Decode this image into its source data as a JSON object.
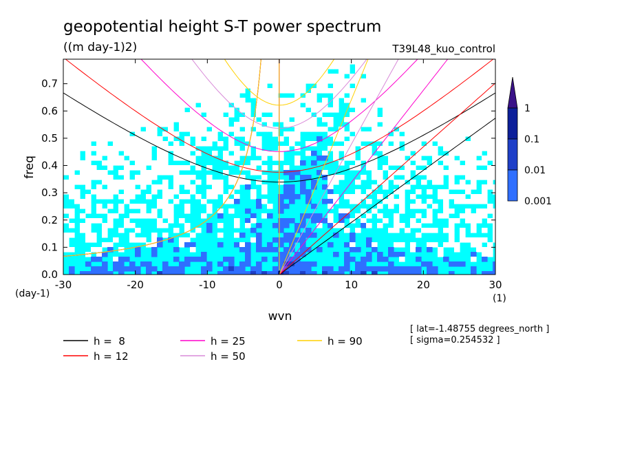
{
  "chart_data": {
    "type": "heatmap",
    "title": "geopotential height S-T power spectrum",
    "units_label": "((m day-1)2)",
    "run_label": "T39L48_kuo_control",
    "xlabel": "wvn",
    "ylabel": "freq",
    "x_unit": "(1)",
    "y_unit": "(day-1)",
    "xlim": [
      -30,
      30
    ],
    "ylim": [
      0,
      0.79
    ],
    "xticks": [
      -30,
      -20,
      -10,
      0,
      10,
      20,
      30
    ],
    "yticks": [
      0.0,
      0.1,
      0.2,
      0.3,
      0.4,
      0.5,
      0.6,
      0.7
    ],
    "xtick_labels": [
      "-30",
      "-20",
      "-10",
      "0",
      "10",
      "20",
      "30"
    ],
    "ytick_labels": [
      "0.0",
      "0.1",
      "0.2",
      "0.3",
      "0.4",
      "0.5",
      "0.6",
      "0.7"
    ],
    "colorbar": {
      "levels": [
        "0.001",
        "0.01",
        "0.1",
        "1"
      ],
      "colors": [
        "#00ffff",
        "#2f6fff",
        "#1e3fc8",
        "#0c1f9a",
        "#3a1288"
      ]
    },
    "background_color": "#00ffff",
    "dispersion_curves": [
      {
        "name": "h =  8",
        "h": 8,
        "color": "#000000"
      },
      {
        "name": "h = 12",
        "h": 12,
        "color": "#ff0000"
      },
      {
        "name": "h = 25",
        "h": 25,
        "color": "#ff00cc"
      },
      {
        "name": "h = 50",
        "h": 50,
        "color": "#d88ad8"
      },
      {
        "name": "h = 90",
        "h": 90,
        "color": "#ffd000"
      }
    ],
    "info": [
      "[ lat=-1.48755 degrees_north ]",
      "[ sigma=0.254532 ]"
    ]
  }
}
